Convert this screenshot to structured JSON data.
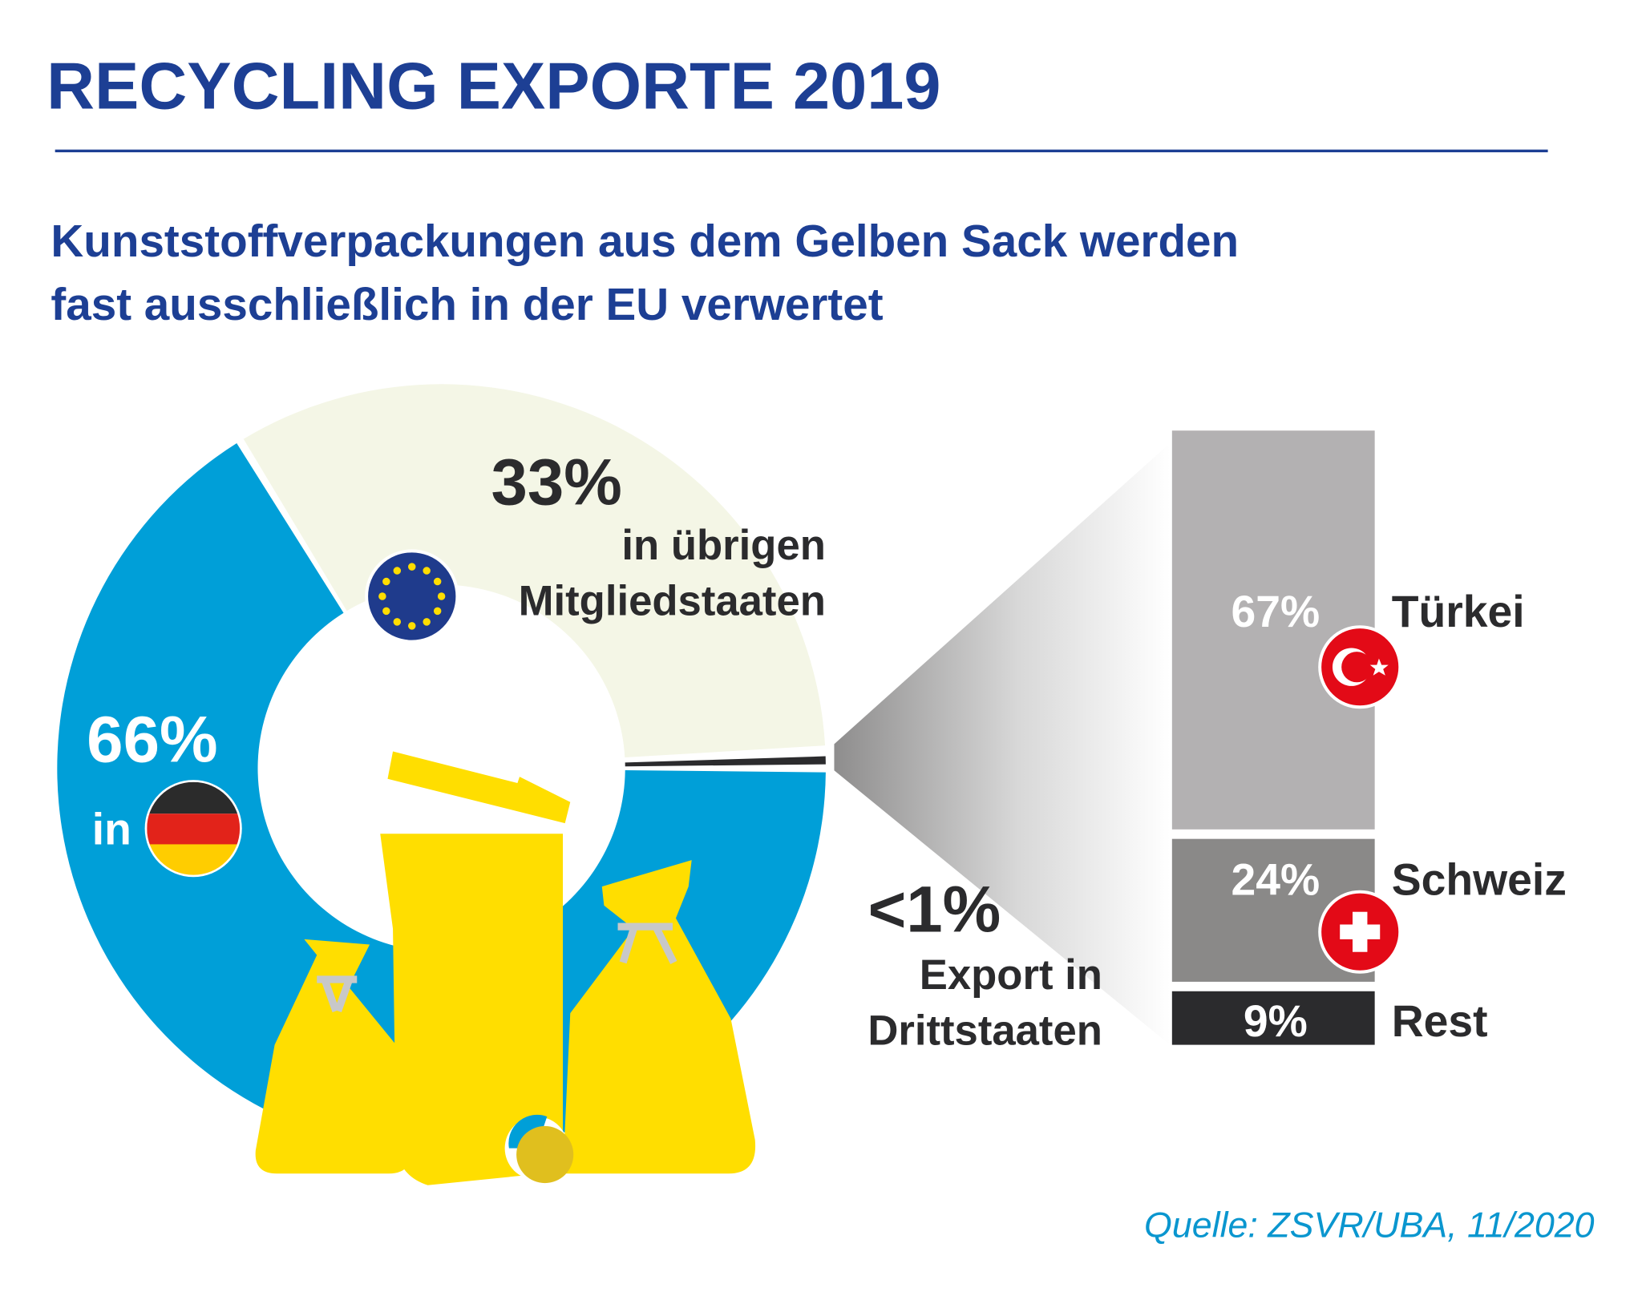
{
  "title": "RECYCLING EXPORTE 2019",
  "subtitle": [
    "Kunststoffverpackungen aus dem Gelben Sack werden",
    "fast ausschließlich in der EU verwertet"
  ],
  "source": "Quelle: ZSVR/UBA, 11/2020",
  "colors": {
    "title": "#1d3f94",
    "germany": "#009fd8",
    "eu": "#f4f6e6",
    "export": "#2b2b2d",
    "tuerkei_bar": "#b3b1b2",
    "schweiz_bar": "#8a8988",
    "rest_bar": "#2b2b2d",
    "source": "#0a96cf",
    "bin": "#ffde00"
  },
  "chart_data": [
    {
      "type": "pie",
      "variant": "donut",
      "slices": [
        {
          "label": "66%",
          "text": "in",
          "value": 66,
          "icon": "germany-flag-icon"
        },
        {
          "label": "33%",
          "text": [
            "in übrigen",
            "Mitgliedstaaten"
          ],
          "value": 33,
          "icon": "eu-flag-icon"
        },
        {
          "label": "<1%",
          "text": [
            "Export in",
            "Drittstaaten"
          ],
          "value": 1
        }
      ]
    },
    {
      "type": "bar",
      "variant": "stacked-100",
      "categories": [
        "Türkei",
        "Schweiz",
        "Rest"
      ],
      "values": [
        67,
        24,
        9
      ],
      "labels": [
        "67%",
        "24%",
        "9%"
      ],
      "icons": [
        "turkey-flag-icon",
        "switzerland-flag-icon",
        ""
      ]
    }
  ]
}
